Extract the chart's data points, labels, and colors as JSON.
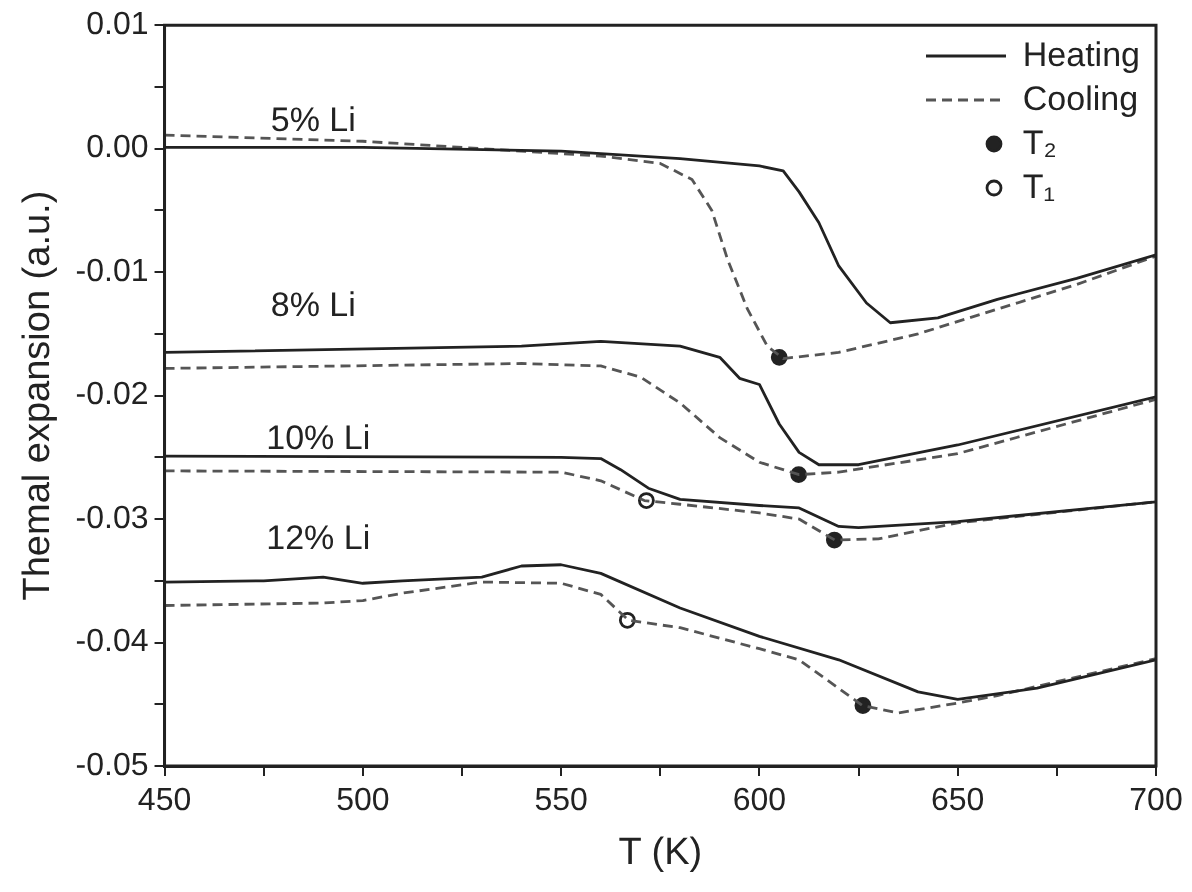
{
  "chart_data": {
    "type": "line",
    "xlabel": "T (K)",
    "ylabel": "Themal expansion (a.u.)",
    "xlim": [
      450,
      700
    ],
    "ylim": [
      -0.05,
      0.01
    ],
    "xticks": [
      450,
      {
        "value": 475,
        "label": null
      },
      500,
      {
        "value": 525,
        "label": null
      },
      550,
      {
        "value": 575,
        "label": null
      },
      600,
      {
        "value": 625,
        "label": null
      },
      650,
      {
        "value": 675,
        "label": null
      },
      700
    ],
    "yticks": [
      -0.05,
      {
        "value": -0.045,
        "label": null
      },
      -0.04,
      {
        "value": -0.035,
        "label": null
      },
      -0.03,
      {
        "value": -0.025,
        "label": null
      },
      -0.02,
      {
        "value": -0.015,
        "label": null
      },
      -0.01,
      {
        "value": -0.005,
        "label": null
      },
      {
        "value": 0,
        "label": "0.00"
      },
      {
        "value": 0.005,
        "label": null
      },
      0.01
    ],
    "grid": false,
    "legend": "top right",
    "marker": "none",
    "annotations": [
      "5% Li",
      "8% Li",
      "10% Li",
      "12% Li"
    ],
    "series": [
      {
        "name": "Heating",
        "color": "#222222",
        "line_style": "solid",
        "x": [
          450,
          500,
          550,
          580,
          600,
          606,
          610,
          615,
          620,
          627,
          633,
          645,
          660,
          680,
          700
        ],
        "values": [
          0.0001,
          0.0001,
          -0.0002,
          -0.0008,
          -0.0014,
          -0.0018,
          -0.0035,
          -0.006,
          -0.0095,
          -0.0125,
          -0.0141,
          -0.0137,
          -0.0122,
          -0.0105,
          -0.0086
        ]
      },
      {
        "name": "Cooling",
        "color": "#555555",
        "line_style": "dashed",
        "x": [
          450,
          500,
          530,
          560,
          575,
          583,
          588,
          592,
          597,
          602,
          606,
          620,
          640,
          660,
          680,
          700
        ],
        "values": [
          0.0011,
          0.0006,
          0.0,
          -0.0006,
          -0.0012,
          -0.0025,
          -0.005,
          -0.009,
          -0.013,
          -0.016,
          -0.017,
          -0.0165,
          -0.015,
          -0.013,
          -0.011,
          -0.0087
        ]
      },
      {
        "color": "#222222",
        "line_style": "solid",
        "x": [
          450,
          540,
          560,
          580,
          590,
          595,
          600,
          605,
          610,
          615,
          625,
          650,
          700
        ],
        "values": [
          -0.0165,
          -0.016,
          -0.0156,
          -0.016,
          -0.0169,
          -0.0186,
          -0.0191,
          -0.0223,
          -0.0246,
          -0.0256,
          -0.0256,
          -0.024,
          -0.0201
        ]
      },
      {
        "color": "#555555",
        "line_style": "dashed",
        "x": [
          450,
          540,
          560,
          570,
          580,
          590,
          600,
          610,
          620,
          650,
          700
        ],
        "values": [
          -0.0178,
          -0.0174,
          -0.0176,
          -0.0185,
          -0.0206,
          -0.0234,
          -0.0254,
          -0.0264,
          -0.0262,
          -0.0247,
          -0.0203
        ]
      },
      {
        "color": "#222222",
        "line_style": "solid",
        "x": [
          450,
          550,
          560,
          565,
          572,
          580,
          600,
          610,
          620,
          625,
          650,
          700
        ],
        "values": [
          -0.0249,
          -0.025,
          -0.0251,
          -0.026,
          -0.0275,
          -0.0284,
          -0.0289,
          -0.0291,
          -0.0306,
          -0.0307,
          -0.0302,
          -0.0286
        ]
      },
      {
        "color": "#555555",
        "line_style": "dashed",
        "x": [
          450,
          550,
          560,
          571,
          580,
          600,
          610,
          619,
          630,
          650,
          700
        ],
        "values": [
          -0.0261,
          -0.0262,
          -0.0269,
          -0.0285,
          -0.0288,
          -0.0295,
          -0.03,
          -0.0317,
          -0.0316,
          -0.0303,
          -0.0286
        ]
      },
      {
        "color": "#222222",
        "line_style": "solid",
        "x": [
          450,
          475,
          490,
          500,
          510,
          530,
          540,
          550,
          560,
          580,
          600,
          620,
          640,
          650,
          670,
          700
        ],
        "values": [
          -0.0351,
          -0.035,
          -0.0347,
          -0.0352,
          -0.035,
          -0.0347,
          -0.0338,
          -0.0337,
          -0.0344,
          -0.0372,
          -0.0395,
          -0.0414,
          -0.044,
          -0.0446,
          -0.0437,
          -0.0414
        ]
      },
      {
        "color": "#555555",
        "line_style": "dashed",
        "x": [
          450,
          490,
          500,
          510,
          530,
          550,
          560,
          567,
          580,
          600,
          610,
          626,
          635,
          650,
          660,
          700
        ],
        "values": [
          -0.037,
          -0.0368,
          -0.0366,
          -0.036,
          -0.0351,
          -0.0352,
          -0.0361,
          -0.0382,
          -0.0388,
          -0.0405,
          -0.0414,
          -0.0451,
          -0.0457,
          -0.0449,
          -0.0443,
          -0.0413
        ]
      },
      {
        "name": "T₂",
        "type": "scatter",
        "marker": "circle",
        "color": "#222222",
        "x": [
          605,
          609.9,
          618.9,
          626.1
        ],
        "values": [
          -0.0169,
          -0.0264,
          -0.0317,
          -0.0451
        ]
      },
      {
        "name": "T₁",
        "type": "scatter",
        "marker": "circle",
        "color": "#ffffff",
        "x": [
          571.5,
          566.7
        ],
        "values": [
          -0.0285,
          -0.0382
        ]
      }
    ]
  }
}
